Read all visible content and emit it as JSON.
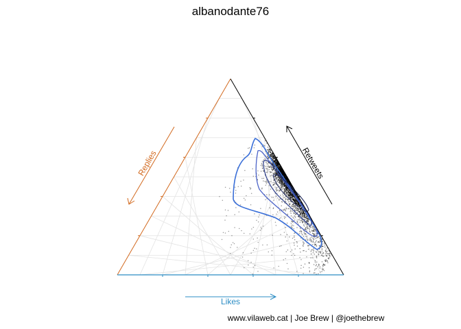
{
  "chart_data": {
    "type": "scatter",
    "subtype": "ternary",
    "title": "albanodante76",
    "axes": {
      "likes": {
        "label": "Likes",
        "color": "#2b8cc4"
      },
      "replies": {
        "label": "Replies",
        "color": "#d2691e"
      },
      "retweets": {
        "label": "Retweets",
        "color": "#000000"
      }
    },
    "grid": true,
    "series": [
      {
        "kind": "points",
        "color": "#000000",
        "concentration": "near the Likes–Retweets edge, densest at high likes share"
      },
      {
        "kind": "density-contours",
        "colors": [
          "#3a6fd8",
          "#4b63c8",
          "#2c3e8c"
        ]
      }
    ],
    "caption": "www.vilaweb.cat | Joe Brew | @joethebrew"
  },
  "colors": {
    "likes": "#2b8cc4",
    "replies": "#d2691e",
    "retweets": "#000000",
    "contour": "#3a6fd8",
    "grid": "#e3e3e3",
    "points": "#000000"
  }
}
